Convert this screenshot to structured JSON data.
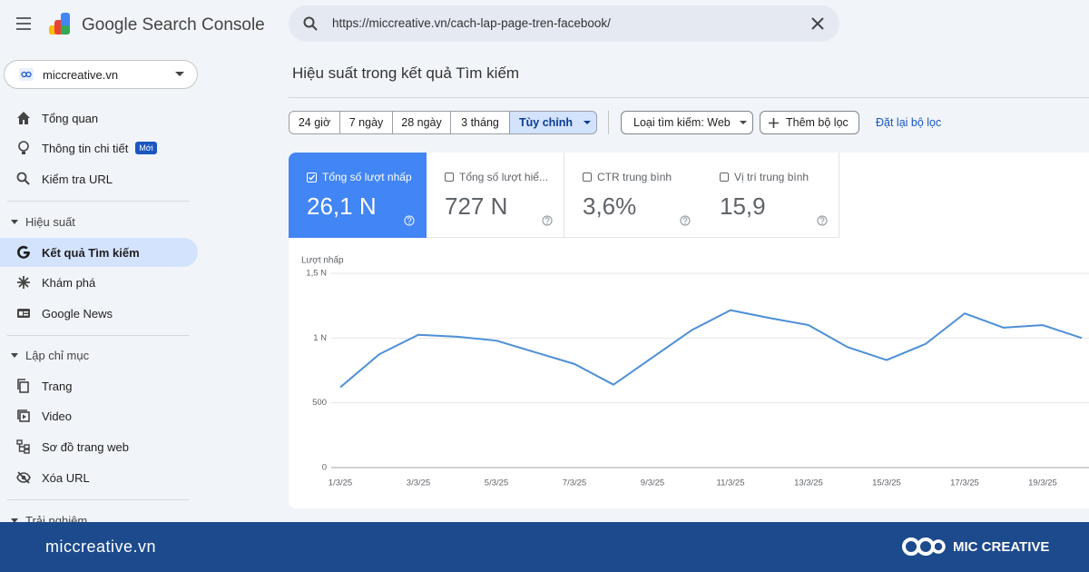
{
  "header": {
    "product": "Google Search Console",
    "search_url": "https://miccreative.vn/cach-lap-page-tren-facebook/"
  },
  "property": "miccreative.vn",
  "nav": {
    "top": [
      {
        "label": "Tổng quan"
      },
      {
        "label": "Thông tin chi tiết",
        "badge": "Mới"
      },
      {
        "label": "Kiểm tra URL"
      }
    ],
    "sections": [
      {
        "title": "Hiệu suất",
        "items": [
          "Kết quả Tìm kiếm",
          "Khám phá",
          "Google News"
        ]
      },
      {
        "title": "Lập chỉ mục",
        "items": [
          "Trang",
          "Video",
          "Sơ đồ trang web",
          "Xóa URL"
        ]
      },
      {
        "title": "Trải nghiệm",
        "items": []
      }
    ]
  },
  "page_title": "Hiệu suất trong kết quả Tìm kiếm",
  "date_ranges": [
    "24 giờ",
    "7 ngày",
    "28 ngày",
    "3 tháng",
    "Tùy chỉnh"
  ],
  "filters": {
    "search_type": "Loại tìm kiếm: Web",
    "add": "Thêm bộ lọc",
    "reset": "Đặt lại bộ lọc"
  },
  "metrics": [
    {
      "label": "Tổng số lượt nhấp",
      "value": "26,1 N"
    },
    {
      "label": "Tổng số lượt hiể...",
      "value": "727 N"
    },
    {
      "label": "CTR trung bình",
      "value": "3,6%"
    },
    {
      "label": "Vị trí trung bình",
      "value": "15,9"
    }
  ],
  "chart_data": {
    "type": "line",
    "y_label": "Lượt nhấp",
    "categories": [
      "1/3/25",
      null,
      "3/3/25",
      null,
      "5/3/25",
      null,
      "7/3/25",
      null,
      "9/3/25",
      null,
      "11/3/25",
      null,
      "13/3/25",
      null,
      "15/3/25",
      null,
      "17/3/25",
      null,
      "19/3/25",
      null
    ],
    "values": [
      620,
      875,
      1025,
      1010,
      980,
      890,
      800,
      640,
      850,
      1060,
      1215,
      1155,
      1100,
      930,
      830,
      955,
      1190,
      1080,
      1100,
      1000
    ],
    "color": "#4d8fd6",
    "ylim": [
      0,
      1500
    ],
    "yticks": [
      0,
      500,
      {
        "value": 1000,
        "label": "1 N"
      },
      {
        "value": 1500,
        "label": "1,5 N"
      }
    ],
    "grid": true
  },
  "footer": {
    "site": "miccreative.vn",
    "brand": "MIC CREATIVE"
  }
}
